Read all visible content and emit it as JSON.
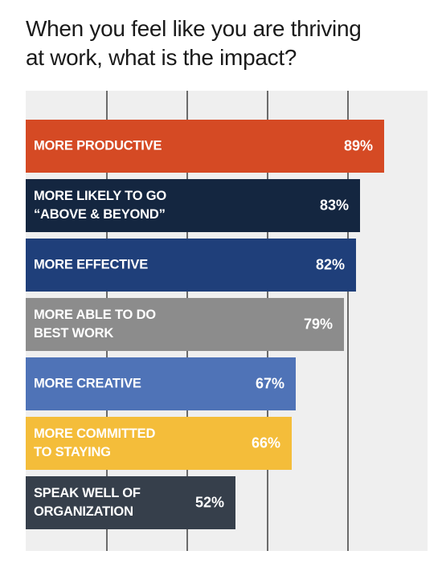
{
  "title": {
    "line1": "When you feel like you are thriving",
    "line2": "at work, what is the impact?"
  },
  "chart_data": {
    "type": "bar",
    "orientation": "horizontal",
    "title": "When you feel like you are thriving at work, what is the impact?",
    "categories": [
      "MORE PRODUCTIVE",
      "MORE LIKELY TO GO\n“ABOVE & BEYOND”",
      "MORE EFFECTIVE",
      "MORE ABLE TO DO\nBEST WORK",
      "MORE CREATIVE",
      "MORE COMMITTED\nTO STAYING",
      "SPEAK WELL OF\nORGANIZATION"
    ],
    "values": [
      89,
      83,
      82,
      79,
      67,
      66,
      52
    ],
    "value_labels": [
      "89%",
      "83%",
      "82%",
      "79%",
      "67%",
      "66%",
      "52%"
    ],
    "colors": [
      "#d54a24",
      "#142640",
      "#1f3f7a",
      "#8c8c8c",
      "#4f73b7",
      "#f4bd3a",
      "#363f4b"
    ],
    "xlim": [
      0,
      100
    ],
    "grid": true,
    "legend": "none"
  }
}
